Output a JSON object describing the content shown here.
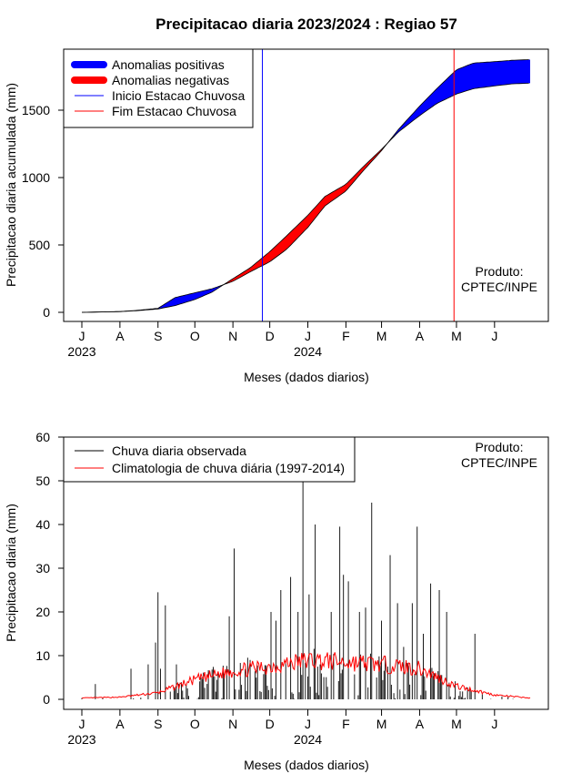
{
  "title": "Precipitacao diaria 2023/2024 : Regiao 57",
  "product_label_1": "Produto:",
  "product_label_2": "CPTEC/INPE",
  "month_labels": [
    "J",
    "A",
    "S",
    "O",
    "N",
    "D",
    "J",
    "F",
    "M",
    "A",
    "M",
    "J"
  ],
  "year_labels": [
    "2023",
    "2024"
  ],
  "chart_data": [
    {
      "type": "area",
      "xlabel": "Meses (dados diarios)",
      "ylabel": "Precipitacao diaria acumulada (mm)",
      "ylim": [
        0,
        1900
      ],
      "yticks": [
        0,
        500,
        1000,
        1500
      ],
      "legend_position": "top-left",
      "legend": [
        "Anomalias positivas",
        "Anomalias negativas",
        "Inicio Estacao Chuvosa",
        "Fim Estacao Chuvosa"
      ],
      "colors": {
        "positive": "#0000ff",
        "negative": "#ff0000",
        "onset": "#0000ff",
        "end": "#ff0000",
        "line": "#000000"
      },
      "x_dates": [
        "2023-07-01",
        "2023-08-01",
        "2023-08-15",
        "2023-09-01",
        "2023-09-15",
        "2023-10-01",
        "2023-10-15",
        "2023-11-01",
        "2023-11-15",
        "2023-12-01",
        "2023-12-15",
        "2024-01-01",
        "2024-01-15",
        "2024-02-01",
        "2024-02-15",
        "2024-03-01",
        "2024-03-15",
        "2024-04-01",
        "2024-04-15",
        "2024-05-01",
        "2024-05-15",
        "2024-06-01",
        "2024-06-15",
        "2024-06-30"
      ],
      "observed_accum": [
        0,
        5,
        15,
        30,
        110,
        145,
        175,
        230,
        300,
        375,
        470,
        630,
        790,
        900,
        1050,
        1200,
        1360,
        1530,
        1660,
        1800,
        1850,
        1860,
        1870,
        1875
      ],
      "climatology_accum": [
        0,
        6,
        12,
        25,
        50,
        95,
        150,
        250,
        330,
        450,
        570,
        720,
        860,
        950,
        1080,
        1210,
        1340,
        1460,
        1550,
        1620,
        1660,
        1680,
        1695,
        1700
      ],
      "onset_date": "2023-11-25",
      "end_date": "2024-04-29"
    },
    {
      "type": "line",
      "xlabel": "Meses (dados diarios)",
      "ylabel": "Precipitacao diaria (mm)",
      "ylim": [
        0,
        60
      ],
      "yticks": [
        0,
        10,
        20,
        30,
        40,
        50,
        60
      ],
      "legend_position": "top-left",
      "legend": [
        "Chuva diaria observada",
        "Climatologia de chuva diária (1997-2014)"
      ],
      "colors": {
        "observed": "#000000",
        "climatology": "#ff0000"
      },
      "observed_peaks": [
        {
          "date": "2023-07-12",
          "value": 3.5
        },
        {
          "date": "2023-08-10",
          "value": 7
        },
        {
          "date": "2023-08-24",
          "value": 8
        },
        {
          "date": "2023-08-30",
          "value": 13
        },
        {
          "date": "2023-09-01",
          "value": 24.5
        },
        {
          "date": "2023-09-03",
          "value": 7
        },
        {
          "date": "2023-09-07",
          "value": 21.5
        },
        {
          "date": "2023-09-16",
          "value": 8
        },
        {
          "date": "2023-10-29",
          "value": 19
        },
        {
          "date": "2023-11-02",
          "value": 34.5
        },
        {
          "date": "2023-11-15",
          "value": 9
        },
        {
          "date": "2023-12-02",
          "value": 20
        },
        {
          "date": "2023-12-06",
          "value": 18
        },
        {
          "date": "2023-12-10",
          "value": 25
        },
        {
          "date": "2023-12-18",
          "value": 28
        },
        {
          "date": "2023-12-24",
          "value": 20
        },
        {
          "date": "2023-12-28",
          "value": 50
        },
        {
          "date": "2024-01-02",
          "value": 24
        },
        {
          "date": "2024-01-07",
          "value": 40
        },
        {
          "date": "2024-01-20",
          "value": 20
        },
        {
          "date": "2024-01-27",
          "value": 39.5
        },
        {
          "date": "2024-01-30",
          "value": 28.5
        },
        {
          "date": "2024-02-03",
          "value": 27
        },
        {
          "date": "2024-02-12",
          "value": 20
        },
        {
          "date": "2024-02-17",
          "value": 21
        },
        {
          "date": "2024-02-22",
          "value": 45
        },
        {
          "date": "2024-03-01",
          "value": 18
        },
        {
          "date": "2024-03-08",
          "value": 33
        },
        {
          "date": "2024-03-14",
          "value": 22
        },
        {
          "date": "2024-03-19",
          "value": 12
        },
        {
          "date": "2024-03-26",
          "value": 22
        },
        {
          "date": "2024-03-30",
          "value": 39.5
        },
        {
          "date": "2024-04-04",
          "value": 15
        },
        {
          "date": "2024-04-10",
          "value": 26.5
        },
        {
          "date": "2024-04-17",
          "value": 25
        },
        {
          "date": "2024-04-23",
          "value": 20
        },
        {
          "date": "2024-05-16",
          "value": 15
        }
      ],
      "climatology_monthly": [
        {
          "date": "2023-07-01",
          "value": 0.3
        },
        {
          "date": "2023-08-01",
          "value": 0.5
        },
        {
          "date": "2023-09-01",
          "value": 1.5
        },
        {
          "date": "2023-10-01",
          "value": 4.5
        },
        {
          "date": "2023-11-01",
          "value": 6.5
        },
        {
          "date": "2023-12-01",
          "value": 7.5
        },
        {
          "date": "2024-01-01",
          "value": 9
        },
        {
          "date": "2024-02-01",
          "value": 8.5
        },
        {
          "date": "2024-03-01",
          "value": 8
        },
        {
          "date": "2024-04-01",
          "value": 7
        },
        {
          "date": "2024-05-01",
          "value": 3
        },
        {
          "date": "2024-06-01",
          "value": 1
        },
        {
          "date": "2024-06-30",
          "value": 0.3
        }
      ]
    }
  ]
}
